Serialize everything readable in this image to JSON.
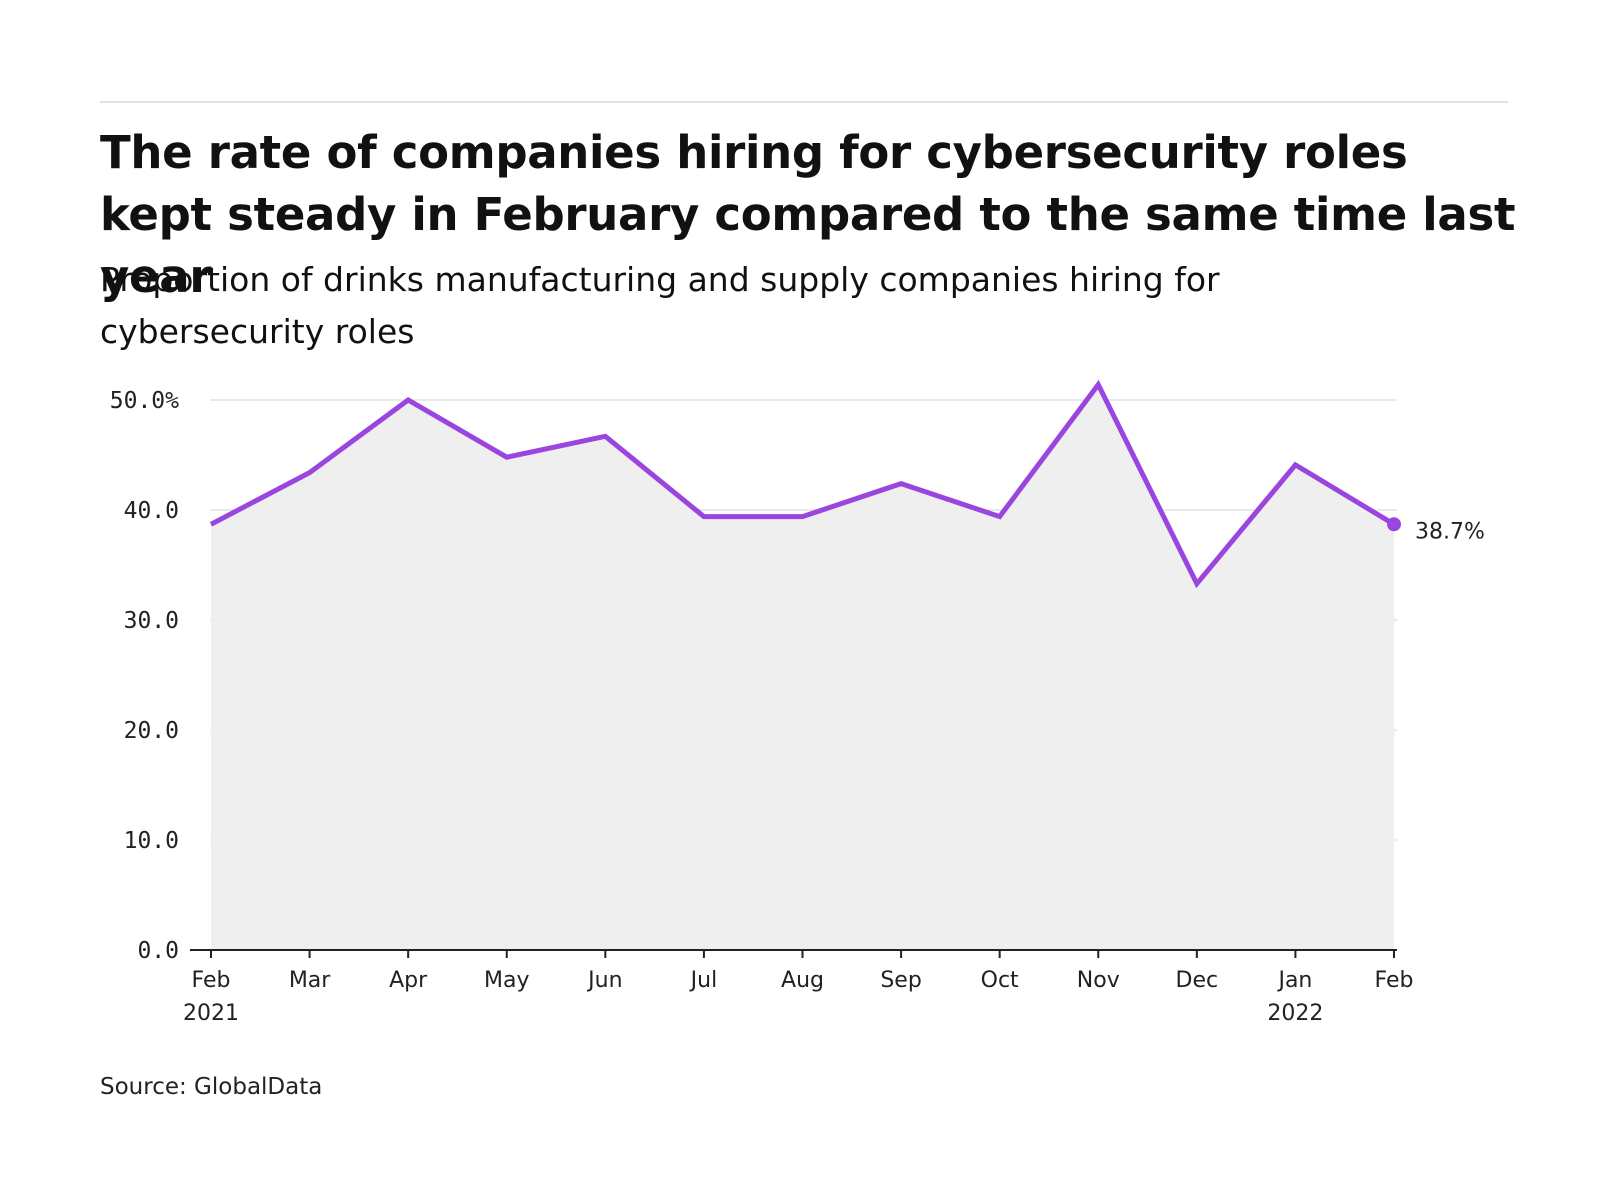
{
  "header": {
    "title": "The rate of companies hiring for cybersecurity roles kept steady in February compared to the same time last year",
    "subtitle": "Proportion of drinks manufacturing and supply companies hiring for cybersecurity roles"
  },
  "footer": {
    "source": "Source: GlobalData"
  },
  "colors": {
    "line": "#9b45e0",
    "area": "#efefef",
    "grid": "#e2e2e2",
    "axis": "#222222"
  },
  "chart_data": {
    "type": "area",
    "title": "The rate of companies hiring for cybersecurity roles kept steady in February compared to the same time last year",
    "subtitle": "Proportion of drinks manufacturing and supply companies hiring for cybersecurity roles",
    "xlabel": "",
    "ylabel": "",
    "ylim": [
      0,
      50
    ],
    "yticks": [
      "0.0",
      "10.0",
      "20.0",
      "30.0",
      "40.0",
      "50.0%"
    ],
    "ytick_values": [
      0,
      10,
      20,
      30,
      40,
      50
    ],
    "categories": [
      "Feb",
      "Mar",
      "Apr",
      "May",
      "Jun",
      "Jul",
      "Aug",
      "Sep",
      "Oct",
      "Nov",
      "Dec",
      "Jan",
      "Feb"
    ],
    "category_years": [
      "2021",
      "",
      "",
      "",
      "",
      "",
      "",
      "",
      "",
      "",
      "",
      "2022",
      ""
    ],
    "series": [
      {
        "values": [
          38.7,
          43.4,
          50.0,
          44.8,
          46.7,
          39.4,
          39.4,
          42.4,
          39.4,
          51.4,
          33.3,
          44.1,
          38.7
        ]
      }
    ],
    "end_label": "38.7%",
    "grid": true,
    "legend": "none"
  }
}
